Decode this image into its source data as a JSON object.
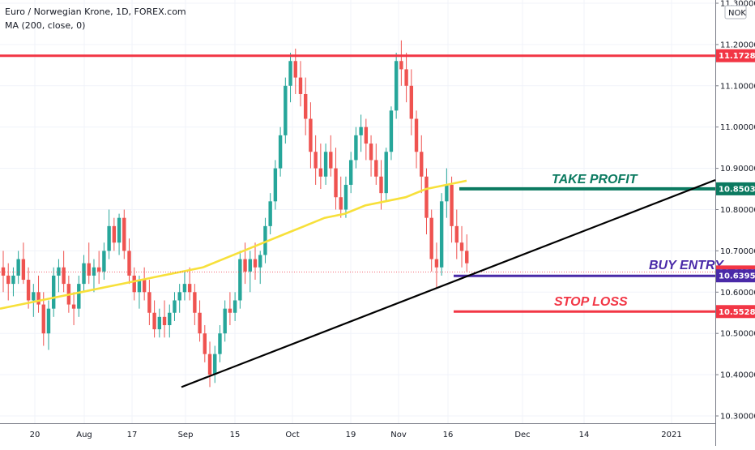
{
  "legend": {
    "line1": "Euro / Norwegian Krone, 1D, FOREX.com",
    "line2": "MA (200, close, 0)"
  },
  "currency_badge": "NOK",
  "chart_data": {
    "type": "candlestick",
    "title": "Euro / Norwegian Krone, 1D, FOREX.com",
    "indicator": "MA (200, close, 0)",
    "ylim": [
      10.3,
      11.3
    ],
    "y_ticks": [
      "10.30000",
      "10.40000",
      "10.50000",
      "10.60000",
      "10.70000",
      "10.80000",
      "10.90000",
      "11.00000",
      "11.10000",
      "11.20000",
      "11.30000"
    ],
    "x_ticks": [
      "20",
      "Aug",
      "17",
      "Sep",
      "15",
      "Oct",
      "19",
      "Nov",
      "16",
      "Dec",
      "14",
      "2021"
    ],
    "candles": [
      [
        10.66,
        10.7,
        10.6,
        10.64
      ],
      [
        10.64,
        10.67,
        10.58,
        10.62
      ],
      [
        10.62,
        10.66,
        10.59,
        10.64
      ],
      [
        10.64,
        10.7,
        10.62,
        10.68
      ],
      [
        10.68,
        10.72,
        10.62,
        10.63
      ],
      [
        10.63,
        10.66,
        10.56,
        10.58
      ],
      [
        10.58,
        10.62,
        10.54,
        10.6
      ],
      [
        10.6,
        10.64,
        10.55,
        10.57
      ],
      [
        10.57,
        10.6,
        10.47,
        10.5
      ],
      [
        10.5,
        10.58,
        10.46,
        10.56
      ],
      [
        10.56,
        10.66,
        10.54,
        10.64
      ],
      [
        10.64,
        10.68,
        10.6,
        10.66
      ],
      [
        10.66,
        10.7,
        10.6,
        10.62
      ],
      [
        10.62,
        10.64,
        10.55,
        10.57
      ],
      [
        10.57,
        10.6,
        10.52,
        10.56
      ],
      [
        10.56,
        10.64,
        10.54,
        10.62
      ],
      [
        10.62,
        10.69,
        10.6,
        10.67
      ],
      [
        10.67,
        10.72,
        10.62,
        10.64
      ],
      [
        10.64,
        10.68,
        10.6,
        10.66
      ],
      [
        10.66,
        10.7,
        10.62,
        10.65
      ],
      [
        10.65,
        10.72,
        10.63,
        10.7
      ],
      [
        10.7,
        10.8,
        10.68,
        10.76
      ],
      [
        10.76,
        10.78,
        10.7,
        10.72
      ],
      [
        10.72,
        10.79,
        10.69,
        10.78
      ],
      [
        10.78,
        10.8,
        10.68,
        10.7
      ],
      [
        10.7,
        10.73,
        10.62,
        10.64
      ],
      [
        10.64,
        10.66,
        10.58,
        10.6
      ],
      [
        10.6,
        10.64,
        10.56,
        10.63
      ],
      [
        10.63,
        10.66,
        10.58,
        10.6
      ],
      [
        10.6,
        10.63,
        10.52,
        10.55
      ],
      [
        10.55,
        10.58,
        10.49,
        10.51
      ],
      [
        10.51,
        10.56,
        10.49,
        10.54
      ],
      [
        10.54,
        10.58,
        10.49,
        10.52
      ],
      [
        10.52,
        10.57,
        10.49,
        10.55
      ],
      [
        10.55,
        10.6,
        10.53,
        10.58
      ],
      [
        10.58,
        10.62,
        10.55,
        10.6
      ],
      [
        10.6,
        10.65,
        10.58,
        10.62
      ],
      [
        10.62,
        10.66,
        10.58,
        10.6
      ],
      [
        10.6,
        10.62,
        10.52,
        10.55
      ],
      [
        10.55,
        10.58,
        10.48,
        10.5
      ],
      [
        10.5,
        10.52,
        10.43,
        10.45
      ],
      [
        10.45,
        10.48,
        10.37,
        10.4
      ],
      [
        10.4,
        10.47,
        10.38,
        10.45
      ],
      [
        10.45,
        10.52,
        10.43,
        10.5
      ],
      [
        10.5,
        10.58,
        10.48,
        10.56
      ],
      [
        10.56,
        10.6,
        10.52,
        10.55
      ],
      [
        10.55,
        10.6,
        10.53,
        10.58
      ],
      [
        10.58,
        10.7,
        10.56,
        10.68
      ],
      [
        10.68,
        10.72,
        10.62,
        10.65
      ],
      [
        10.65,
        10.7,
        10.6,
        10.68
      ],
      [
        10.68,
        10.72,
        10.63,
        10.66
      ],
      [
        10.66,
        10.7,
        10.62,
        10.69
      ],
      [
        10.69,
        10.78,
        10.67,
        10.76
      ],
      [
        10.76,
        10.84,
        10.74,
        10.82
      ],
      [
        10.82,
        10.92,
        10.8,
        10.9
      ],
      [
        10.9,
        11.0,
        10.88,
        10.98
      ],
      [
        10.98,
        11.12,
        10.96,
        11.1
      ],
      [
        11.1,
        11.18,
        11.06,
        11.16
      ],
      [
        11.16,
        11.19,
        11.08,
        11.12
      ],
      [
        11.12,
        11.16,
        11.05,
        11.08
      ],
      [
        11.08,
        11.12,
        10.98,
        11.02
      ],
      [
        11.02,
        11.06,
        10.9,
        10.94
      ],
      [
        10.94,
        10.98,
        10.86,
        10.9
      ],
      [
        10.9,
        10.96,
        10.85,
        10.88
      ],
      [
        10.88,
        10.96,
        10.86,
        10.94
      ],
      [
        10.94,
        10.98,
        10.88,
        10.9
      ],
      [
        10.9,
        10.95,
        10.8,
        10.83
      ],
      [
        10.83,
        10.88,
        10.78,
        10.8
      ],
      [
        10.8,
        10.88,
        10.78,
        10.86
      ],
      [
        10.86,
        10.94,
        10.84,
        10.92
      ],
      [
        10.92,
        11.0,
        10.9,
        10.98
      ],
      [
        10.98,
        11.03,
        10.94,
        11.0
      ],
      [
        11.0,
        11.02,
        10.92,
        10.96
      ],
      [
        10.96,
        10.98,
        10.88,
        10.92
      ],
      [
        10.92,
        10.96,
        10.86,
        10.88
      ],
      [
        10.88,
        10.92,
        10.8,
        10.84
      ],
      [
        10.84,
        10.95,
        10.82,
        10.94
      ],
      [
        10.94,
        11.05,
        10.92,
        11.04
      ],
      [
        11.04,
        11.18,
        11.02,
        11.16
      ],
      [
        11.16,
        11.21,
        11.1,
        11.14
      ],
      [
        11.14,
        11.18,
        11.06,
        11.1
      ],
      [
        11.1,
        11.14,
        10.98,
        11.02
      ],
      [
        11.02,
        11.04,
        10.9,
        10.94
      ],
      [
        10.94,
        10.98,
        10.84,
        10.88
      ],
      [
        10.88,
        10.9,
        10.74,
        10.78
      ],
      [
        10.78,
        10.8,
        10.65,
        10.68
      ],
      [
        10.68,
        10.72,
        10.61,
        10.66
      ],
      [
        10.66,
        10.84,
        10.64,
        10.82
      ],
      [
        10.82,
        10.9,
        10.78,
        10.86
      ],
      [
        10.86,
        10.88,
        10.72,
        10.76
      ],
      [
        10.76,
        10.8,
        10.68,
        10.72
      ],
      [
        10.72,
        10.76,
        10.66,
        10.7
      ],
      [
        10.7,
        10.74,
        10.65,
        10.67
      ]
    ],
    "ma200": [
      10.56,
      10.57,
      10.58,
      10.59,
      10.6,
      10.61,
      10.62,
      10.63,
      10.64,
      10.65,
      10.66,
      10.68,
      10.7,
      10.72,
      10.74,
      10.76,
      10.78,
      10.79,
      10.81,
      10.82,
      10.83,
      10.85,
      10.86,
      10.87
    ],
    "horizontal_levels": [
      {
        "name": "resistance",
        "value": 11.17285,
        "label": "11.17285",
        "color": "#f23645"
      },
      {
        "name": "take-profit",
        "value": 10.85032,
        "label": "10.85032",
        "color": "#0b7a60",
        "text": "TAKE PROFIT"
      },
      {
        "name": "last-price",
        "value": 10.64896,
        "label": "10.64896",
        "color": "#f23645"
      },
      {
        "name": "buy-entry",
        "value": 10.6395,
        "label": "10.63950",
        "color": "#4a2aa8",
        "text": "BUY ENTRY"
      },
      {
        "name": "stop-loss",
        "value": 10.55289,
        "label": "10.55289",
        "color": "#f23645",
        "text": "STOP LOSS"
      }
    ],
    "trendline": {
      "from": [
        41,
        10.37
      ],
      "to": [
        146,
        10.88
      ],
      "color": "#000000"
    },
    "colors": {
      "up": "#26a69a",
      "down": "#ef5350",
      "ma": "#f7e03a",
      "grid": "#f0f3fa"
    }
  }
}
